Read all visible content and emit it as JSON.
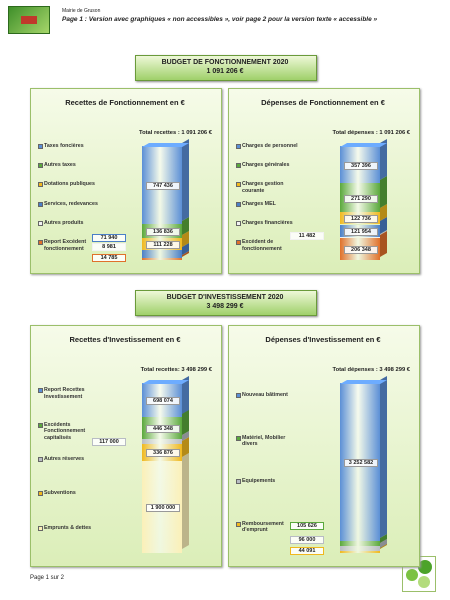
{
  "header": {
    "org": "Mairie de Gruson",
    "note": "Page 1 : Version avec graphiques « non accessibles », voir page 2 pour la version texte « accessible »"
  },
  "sections": [
    {
      "title": "BUDGET DE FONCTIONNEMENT 2020",
      "total": "1 091 206 €",
      "charts": [
        {
          "type": "stacked-bar",
          "title": "Recettes de Fonctionnement en €",
          "total_label": "Total recettes : 1 091 206 €",
          "categories": [
            "Taxes foncières",
            "Autres taxes",
            "Dotations publiques",
            "Services, redevances",
            "Autres produits",
            "Report Excédent fonctionnement"
          ],
          "values": [
            747436,
            136836,
            111228,
            71940,
            8981,
            14785
          ],
          "value_labels": [
            "747 436",
            "136 836",
            "111 228",
            "71 940",
            "8 981",
            "14 785"
          ],
          "colors": [
            "#5b8fd6",
            "#5aa83c",
            "#f0b81e",
            "#4a7fc8",
            "#f2f2f2",
            "#e0702a"
          ]
        },
        {
          "type": "stacked-bar",
          "title": "Dépenses de Fonctionnement en €",
          "total_label": "Total dépenses : 1 091 206 €",
          "categories": [
            "Charges de personnel",
            "Charges générales",
            "Charges gestion courante",
            "Charges MEL",
            "Charges financières",
            "Excédent de fonctionnement"
          ],
          "values": [
            357396,
            271290,
            122736,
            121954,
            11482,
            206348
          ],
          "value_labels": [
            "357 396",
            "271 290",
            "122 736",
            "121 954",
            "11 482",
            "206 348"
          ],
          "colors": [
            "#5b8fd6",
            "#5aa83c",
            "#f0b81e",
            "#4a7fc8",
            "#f2f2f2",
            "#e0702a"
          ]
        }
      ]
    },
    {
      "title": "BUDGET D'INVESTISSEMENT 2020",
      "total": "3 498 299 €",
      "charts": [
        {
          "type": "stacked-bar",
          "title": "Recettes d'Investissement en €",
          "total_label": "Total recettes: 3 498 299 €",
          "categories": [
            "Report Recettes Investissement",
            "Excédents Fonctionnement capitalisés",
            "Autres réserves",
            "Subventions",
            "Emprunts & dettes"
          ],
          "values": [
            698074,
            446348,
            117000,
            336876,
            1900000
          ],
          "value_labels": [
            "698 074",
            "446 348",
            "117 000",
            "336 876",
            "1 900 000"
          ],
          "colors": [
            "#5b8fd6",
            "#5aa83c",
            "#b8bcc4",
            "#f0b81e",
            "#fbf0b8"
          ]
        },
        {
          "type": "stacked-bar",
          "title": "Dépenses d'Investissement en €",
          "total_label": "Total dépenses : 3 498 299 €",
          "categories": [
            "Nouveau bâtiment",
            "Matériel, Mobilier divers",
            "Equipements",
            "Remboursement d'emprunt"
          ],
          "values": [
            3252582,
            105626,
            96000,
            44091
          ],
          "value_labels": [
            "3 252 582",
            "105 626",
            "96 000",
            "44 091"
          ],
          "colors": [
            "#5b8fd6",
            "#5aa83c",
            "#b8bcc4",
            "#f0b81e"
          ]
        }
      ]
    }
  ],
  "footer": {
    "page": "Page 1 sur 2"
  }
}
